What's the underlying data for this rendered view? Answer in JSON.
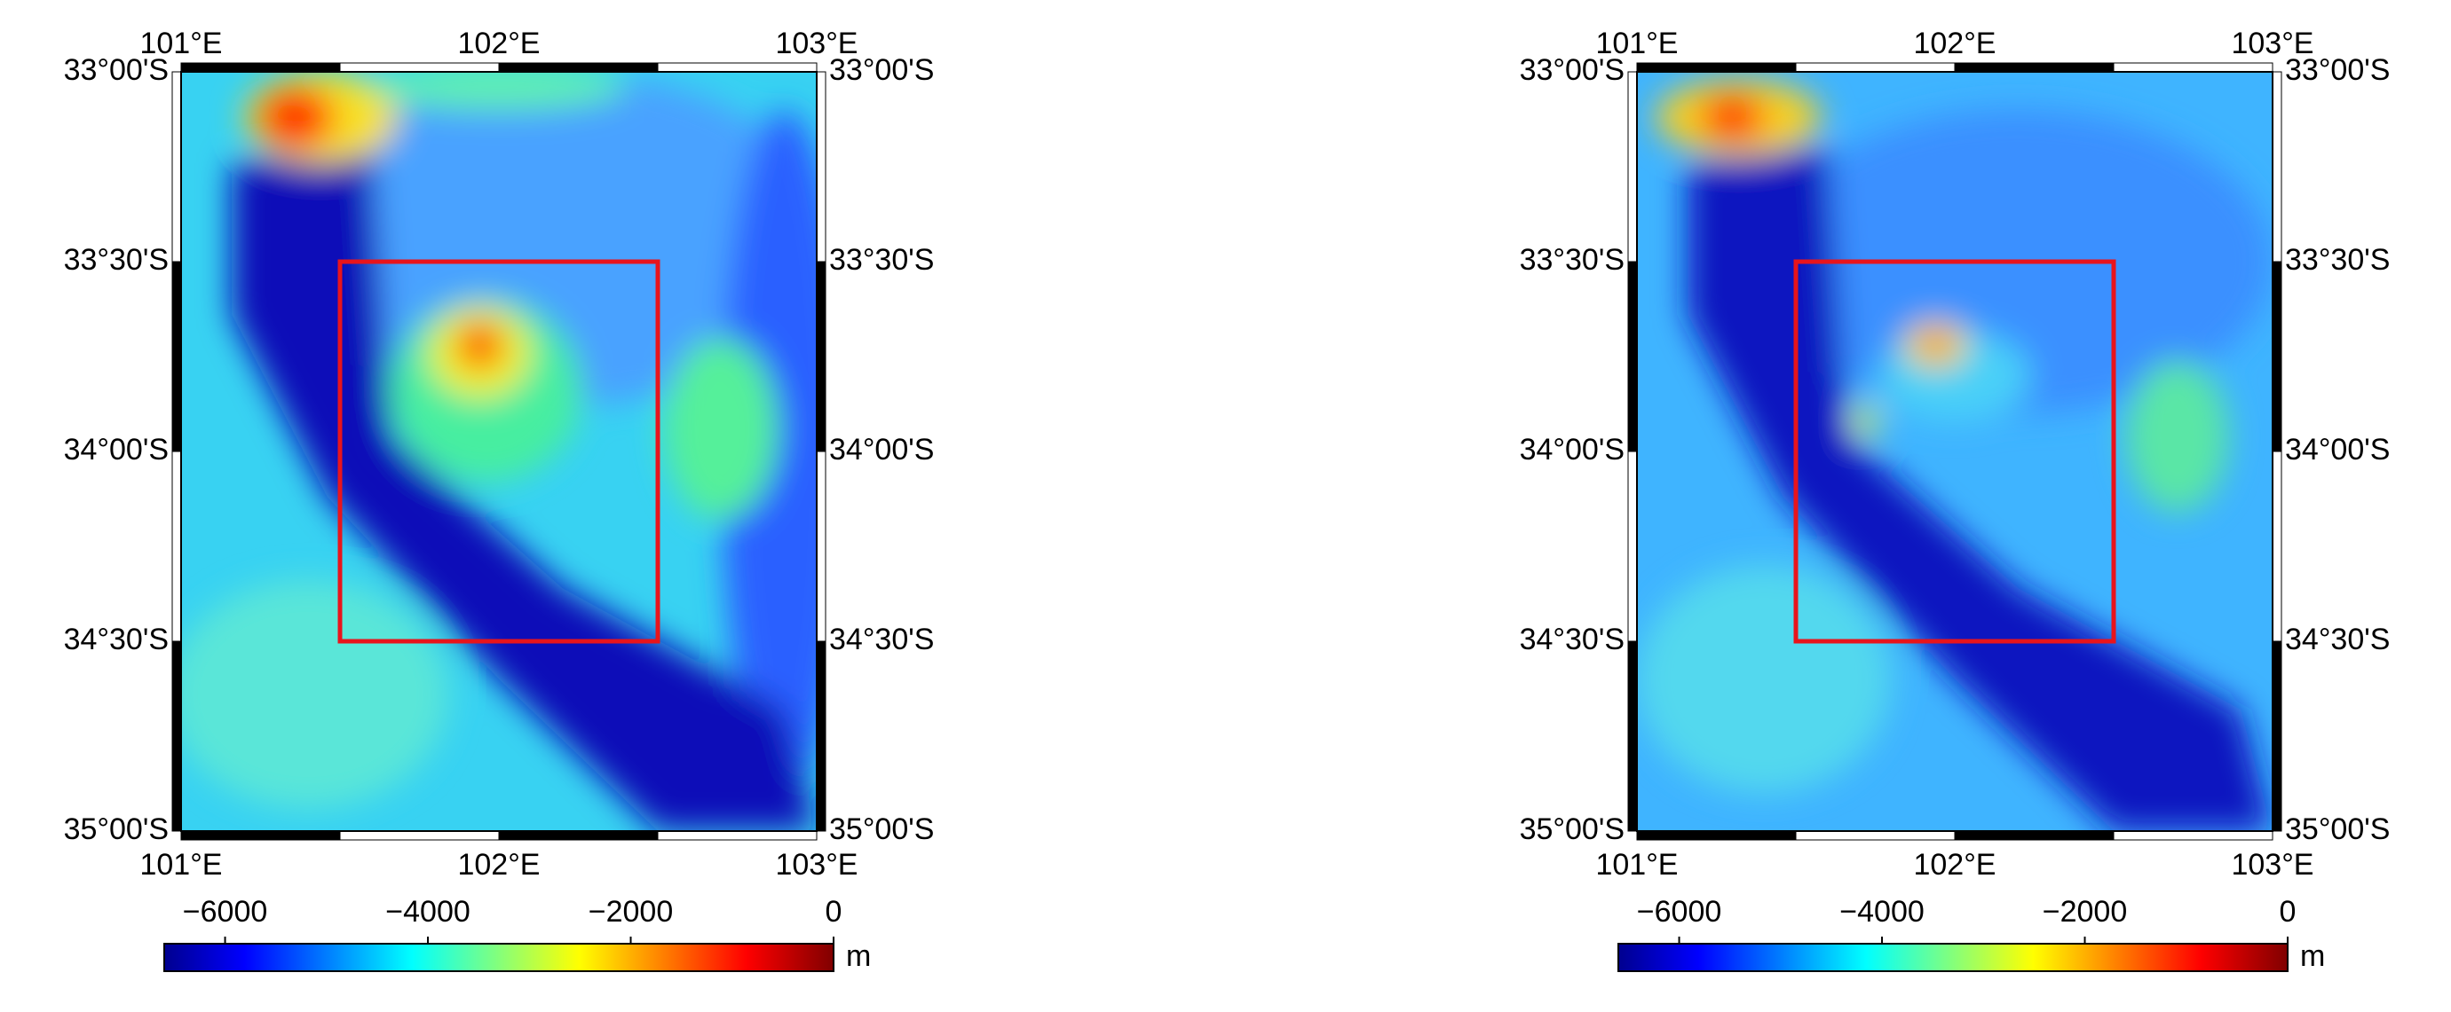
{
  "map": {
    "lon_range": [
      101,
      103
    ],
    "lat_range": [
      -33,
      -35
    ],
    "lon_ticks": [
      {
        "value": 101,
        "label": "101°E"
      },
      {
        "value": 102,
        "label": "102°E"
      },
      {
        "value": 103,
        "label": "103°E"
      }
    ],
    "lat_ticks": [
      {
        "value": -33,
        "label": "33°00'S"
      },
      {
        "value": -33.5,
        "label": "33°30'S"
      },
      {
        "value": -34,
        "label": "34°00'S"
      },
      {
        "value": -34.5,
        "label": "34°30'S"
      },
      {
        "value": -35,
        "label": "35°00'S"
      }
    ],
    "box": {
      "lon": [
        101.5,
        102.5
      ],
      "lat": [
        -33.5,
        -34.5
      ]
    },
    "colorbar": {
      "range": [
        -6600,
        0
      ],
      "ticks": [
        {
          "value": -6000,
          "label": "−6000"
        },
        {
          "value": -4000,
          "label": "−4000"
        },
        {
          "value": -2000,
          "label": "−2000"
        },
        {
          "value": 0,
          "label": "0"
        }
      ],
      "unit": "m"
    }
  }
}
